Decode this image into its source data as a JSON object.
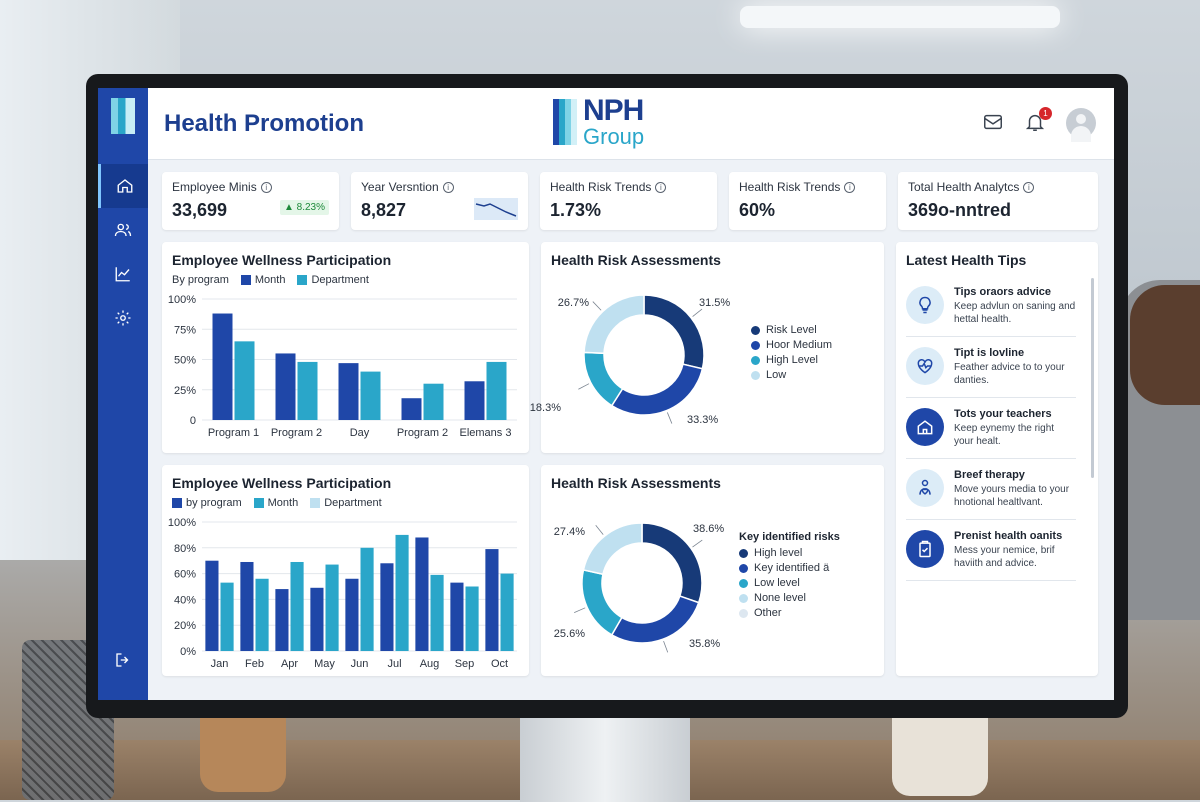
{
  "header": {
    "title": "Health Promotion",
    "brand_line1": "NPH",
    "brand_line2": "Group",
    "notification_count": "1"
  },
  "kpis": [
    {
      "label": "Employee Minis",
      "value": "33,699",
      "delta": "▲ 8.23%"
    },
    {
      "label": "Year Versntion",
      "value": "8,827"
    },
    {
      "label": "Health Risk Trends",
      "value": "1.73%"
    },
    {
      "label": "Health Risk Trends",
      "value": "60%"
    },
    {
      "label": "Total Health Analytcs",
      "value": "369o-nntred"
    }
  ],
  "colors": {
    "dark": "#1f47a8",
    "mid": "#2aa6c9",
    "light": "#bfe0f0",
    "navy": "#173a78",
    "pale": "#dde7f0"
  },
  "chart_data": [
    {
      "type": "bar",
      "title": "Employee Wellness Participation",
      "legend": [
        "By program",
        "Month",
        "Department"
      ],
      "categories": [
        "Program 1",
        "Program 2",
        "Day",
        "Program 2",
        "Elemans 3"
      ],
      "yticks": [
        "100%",
        "75%",
        "50%",
        "25%",
        "0"
      ],
      "ylim": [
        0,
        100
      ],
      "series": [
        {
          "name": "Month",
          "values": [
            88,
            55,
            47,
            18,
            32
          ]
        },
        {
          "name": "Department",
          "values": [
            65,
            48,
            40,
            30,
            48
          ]
        }
      ]
    },
    {
      "type": "pie",
      "title": "Health Risk Assessments",
      "legend": [
        "Risk Level",
        "Hoor Medium",
        "High Level",
        "Low"
      ],
      "values": [
        31.5,
        33.3,
        18.3,
        26.7
      ],
      "labels": [
        "31.5%",
        "33.3%",
        "18.3%",
        "26.7%"
      ]
    },
    {
      "type": "bar",
      "title": "Employee Wellness Participation",
      "legend": [
        "by program",
        "Month",
        "Department"
      ],
      "categories": [
        "Jan",
        "Feb",
        "Apr",
        "May",
        "Jun",
        "Jul",
        "Aug",
        "Sep",
        "Oct"
      ],
      "yticks": [
        "100%",
        "80%",
        "60%",
        "40%",
        "20%",
        "0%"
      ],
      "ylim": [
        0,
        100
      ],
      "series": [
        {
          "name": "by program",
          "values": [
            70,
            69,
            48,
            49,
            56,
            68,
            88,
            53,
            79
          ]
        },
        {
          "name": "Month",
          "values": [
            53,
            56,
            69,
            67,
            80,
            90,
            59,
            50,
            60
          ]
        }
      ]
    },
    {
      "type": "pie",
      "title": "Health Risk Assessments",
      "legend_title": "Key identified risks",
      "legend": [
        "High level",
        "Key identified ä",
        "Low level",
        "None level",
        "Other"
      ],
      "values": [
        38.6,
        35.8,
        25.6,
        27.4
      ],
      "labels": [
        "38.6%",
        "35.8%",
        "25.6%",
        "27.4%"
      ]
    }
  ],
  "tips": {
    "title": "Latest Health Tips",
    "items": [
      {
        "title": "Tips oraors advice",
        "text": "Keep advlun on saning and hettal health.",
        "icon": "lightbulb-icon"
      },
      {
        "title": "Tipt is lovline",
        "text": "Feather advice to to your danties.",
        "icon": "heartbeat-icon"
      },
      {
        "title": "Tots your teachers",
        "text": "Keep eynemy the right your healt.",
        "icon": "house-icon"
      },
      {
        "title": "Breef therapy",
        "text": "Move yours media to your hnotional healtlvant.",
        "icon": "person-heart-icon"
      },
      {
        "title": "Prenist health oanits",
        "text": "Mess your nemice, brif haviith and advice.",
        "icon": "clipboard-icon"
      }
    ]
  }
}
